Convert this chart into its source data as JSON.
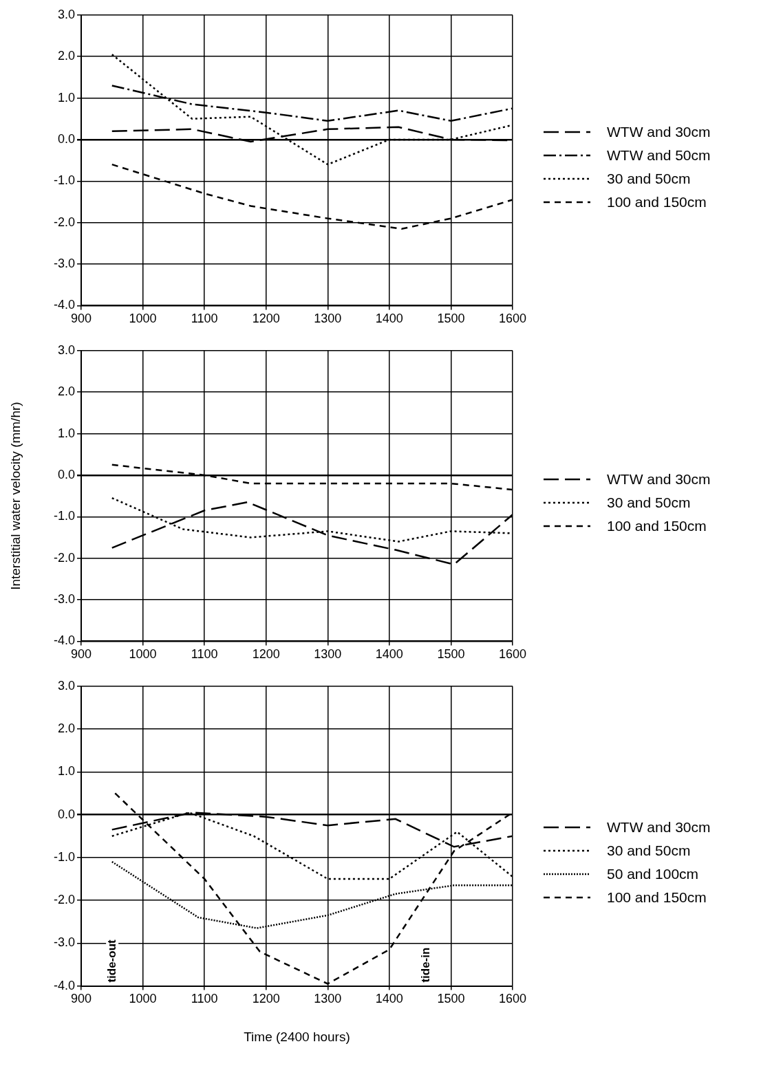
{
  "chart_data": [
    {
      "type": "line",
      "xlim": [
        900,
        1600
      ],
      "xticks": [
        900,
        1000,
        1100,
        1200,
        1300,
        1400,
        1500,
        1600
      ],
      "ylim": [
        -4,
        3
      ],
      "yticks": [
        {
          "value": -4,
          "label": "-4.0"
        },
        {
          "value": -3,
          "label": "-3.0"
        },
        {
          "value": -2,
          "label": "-2.0"
        },
        {
          "value": -1,
          "label": "-1.0"
        },
        {
          "value": 0,
          "label": "0.0"
        },
        {
          "value": 1,
          "label": "1.0"
        },
        {
          "value": 2,
          "label": "2.0"
        },
        {
          "value": 3,
          "label": "3.0"
        }
      ],
      "grid": true,
      "legend": "right",
      "marker": "none",
      "series": [
        {
          "name": "WTW and 30cm",
          "color": "#000000",
          "line_style": "longdash",
          "x": [
            950,
            1080,
            1175,
            1300,
            1415,
            1500,
            1600
          ],
          "values": [
            0.2,
            0.25,
            -0.05,
            0.25,
            0.3,
            0.0,
            -0.02
          ]
        },
        {
          "name": "WTW and 50cm",
          "color": "#000000",
          "line_style": "dashdot",
          "x": [
            950,
            1080,
            1200,
            1300,
            1415,
            1500,
            1600
          ],
          "values": [
            1.3,
            0.85,
            0.65,
            0.45,
            0.7,
            0.45,
            0.75
          ]
        },
        {
          "name": "30 and 50cm",
          "color": "#000000",
          "line_style": "dotted",
          "x": [
            950,
            1080,
            1175,
            1300,
            1400,
            1500,
            1600
          ],
          "values": [
            2.05,
            0.5,
            0.55,
            -0.6,
            0.0,
            0.0,
            0.35
          ]
        },
        {
          "name": "100 and 150cm",
          "color": "#000000",
          "line_style": "dashed",
          "x": [
            950,
            1100,
            1175,
            1300,
            1420,
            1500,
            1600
          ],
          "values": [
            -0.6,
            -1.3,
            -1.6,
            -1.9,
            -2.15,
            -1.9,
            -1.45
          ]
        }
      ]
    },
    {
      "type": "line",
      "ylabel": "Interstitial water velocity (mm/hr)",
      "xlim": [
        900,
        1600
      ],
      "xticks": [
        900,
        1000,
        1100,
        1200,
        1300,
        1400,
        1500,
        1600
      ],
      "ylim": [
        -4,
        3
      ],
      "yticks": [
        {
          "value": -4,
          "label": "-4.0"
        },
        {
          "value": -3,
          "label": "-3.0"
        },
        {
          "value": -2,
          "label": "-2.0"
        },
        {
          "value": -1,
          "label": "-1.0"
        },
        {
          "value": 0,
          "label": "0.0"
        },
        {
          "value": 1,
          "label": "1.0"
        },
        {
          "value": 2,
          "label": "2.0"
        },
        {
          "value": 3,
          "label": "3.0"
        }
      ],
      "grid": true,
      "legend": "right",
      "marker": "none",
      "series": [
        {
          "name": "WTW and 30cm",
          "color": "#000000",
          "line_style": "longdash",
          "x": [
            950,
            1100,
            1170,
            1300,
            1410,
            1505,
            1600
          ],
          "values": [
            -1.75,
            -0.85,
            -0.65,
            -1.45,
            -1.8,
            -2.15,
            -0.95
          ]
        },
        {
          "name": "30 and 50cm",
          "color": "#000000",
          "line_style": "dotted",
          "x": [
            950,
            1065,
            1175,
            1300,
            1415,
            1500,
            1600
          ],
          "values": [
            -0.55,
            -1.3,
            -1.5,
            -1.35,
            -1.6,
            -1.35,
            -1.4
          ]
        },
        {
          "name": "100 and 150cm",
          "color": "#000000",
          "line_style": "dashed",
          "x": [
            950,
            1100,
            1175,
            1300,
            1400,
            1500,
            1600
          ],
          "values": [
            0.25,
            0.0,
            -0.2,
            -0.2,
            -0.2,
            -0.2,
            -0.35
          ]
        }
      ]
    },
    {
      "type": "line",
      "xlabel": "Time (2400 hours)",
      "xlim": [
        900,
        1600
      ],
      "xticks": [
        900,
        1000,
        1100,
        1200,
        1300,
        1400,
        1500,
        1600
      ],
      "ylim": [
        -4,
        3
      ],
      "yticks": [
        {
          "value": -4,
          "label": "-4.0"
        },
        {
          "value": -3,
          "label": "-3.0"
        },
        {
          "value": -2,
          "label": "-2.0"
        },
        {
          "value": -1,
          "label": "-1.0"
        },
        {
          "value": 0,
          "label": "0.0"
        },
        {
          "value": 1,
          "label": "1.0"
        },
        {
          "value": 2,
          "label": "2.0"
        },
        {
          "value": 3,
          "label": "3.0"
        }
      ],
      "grid": true,
      "legend": "right",
      "marker": "none",
      "annotations": [
        "tide-out",
        "tide-in"
      ],
      "series": [
        {
          "name": "WTW and 30cm",
          "color": "#000000",
          "line_style": "longdash",
          "x": [
            950,
            1080,
            1200,
            1300,
            1410,
            1505,
            1600
          ],
          "values": [
            -0.35,
            0.05,
            -0.05,
            -0.25,
            -0.1,
            -0.75,
            -0.5
          ]
        },
        {
          "name": "30 and 50cm",
          "color": "#000000",
          "line_style": "dotted",
          "x": [
            950,
            1075,
            1180,
            1300,
            1400,
            1510,
            1600
          ],
          "values": [
            -0.5,
            0.05,
            -0.5,
            -1.5,
            -1.5,
            -0.4,
            -1.45
          ]
        },
        {
          "name": "50 and 100cm",
          "color": "#000000",
          "line_style": "densedotted",
          "x": [
            950,
            1090,
            1185,
            1300,
            1410,
            1505,
            1600
          ],
          "values": [
            -1.1,
            -2.4,
            -2.65,
            -2.35,
            -1.85,
            -1.65,
            -1.65
          ]
        },
        {
          "name": "100 and 150cm",
          "color": "#000000",
          "line_style": "dashed",
          "x": [
            955,
            1100,
            1190,
            1300,
            1400,
            1505,
            1600
          ],
          "values": [
            0.5,
            -1.5,
            -3.2,
            -3.95,
            -3.15,
            -0.85,
            0.05
          ]
        }
      ]
    }
  ]
}
